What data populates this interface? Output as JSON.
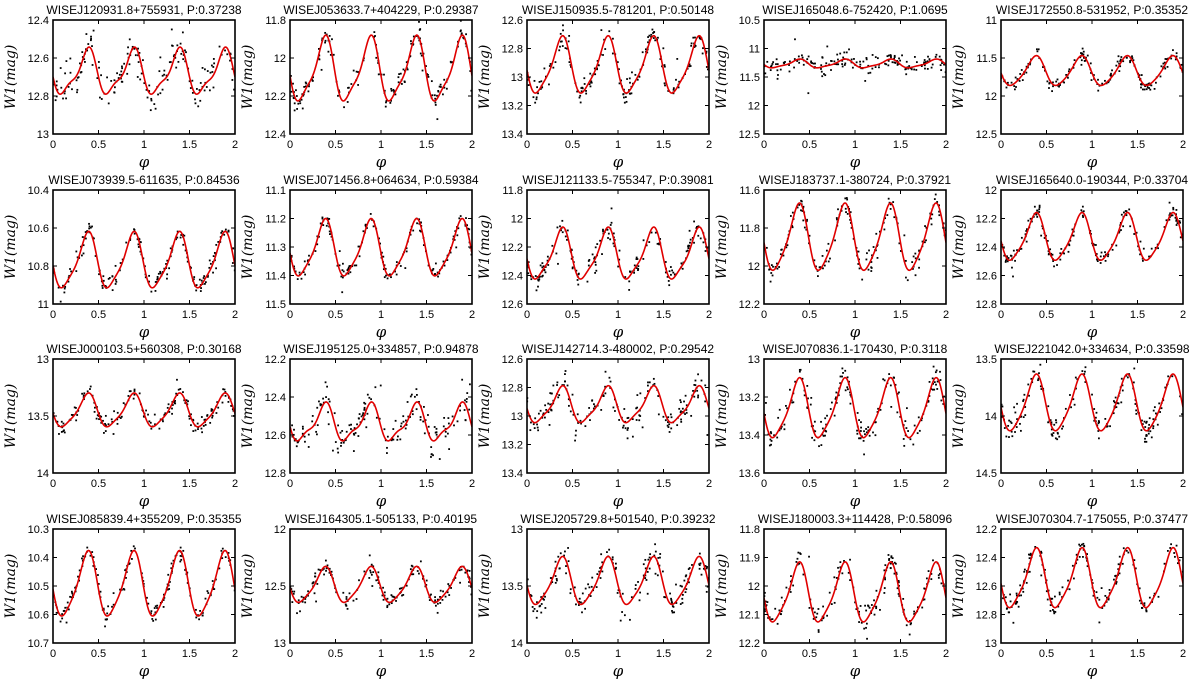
{
  "chart_data": [
    {
      "type": "scatter",
      "title": "WISEJ120931.8+755931, P:0.37238",
      "xlabel": "φ",
      "ylabel": "W1(mag)",
      "xlim": [
        0,
        2
      ],
      "ylim": [
        12.4,
        13
      ],
      "y_inverted": true,
      "xticks": [
        "0",
        "0.5",
        "1",
        "1.5",
        "2"
      ],
      "yticks": [
        "12.4",
        "12.6",
        "12.8",
        "13"
      ],
      "fit": {
        "mean": 12.68,
        "amp1": 0.11,
        "amp2": 0.035
      },
      "scatter_sigma": 0.05
    },
    {
      "type": "scatter",
      "title": "WISEJ053633.7+404229, P:0.29387",
      "xlabel": "φ",
      "ylabel": "W1(mag)",
      "xlim": [
        0,
        2
      ],
      "ylim": [
        11.8,
        12.4
      ],
      "y_inverted": true,
      "xticks": [
        "0",
        "0.5",
        "1",
        "1.5",
        "2"
      ],
      "yticks": [
        "11.8",
        "12",
        "12.2",
        "12.4"
      ],
      "fit": {
        "mean": 12.07,
        "amp1": 0.16,
        "amp2": 0.04
      },
      "scatter_sigma": 0.03
    },
    {
      "type": "scatter",
      "title": "WISEJ150935.5-781201, P:0.50148",
      "xlabel": "φ",
      "ylabel": "W1(mag)",
      "xlim": [
        0,
        2
      ],
      "ylim": [
        12.6,
        13.4
      ],
      "y_inverted": true,
      "xticks": [
        "0",
        "0.5",
        "1",
        "1.5",
        "2"
      ],
      "yticks": [
        "12.6",
        "12.8",
        "13",
        "13.2",
        "13.4"
      ],
      "fit": {
        "mean": 12.93,
        "amp1": 0.19,
        "amp2": 0.04
      },
      "scatter_sigma": 0.04
    },
    {
      "type": "scatter",
      "title": "WISEJ165048.6-752420, P:1.0695",
      "xlabel": "φ",
      "ylabel": "W1(mag)",
      "xlim": [
        0,
        2
      ],
      "ylim": [
        10.5,
        12.5
      ],
      "y_inverted": true,
      "xticks": [
        "0",
        "0.5",
        "1",
        "1.5",
        "2"
      ],
      "yticks": [
        "10.5",
        "11",
        "11.5",
        "12",
        "12.5"
      ],
      "fit": {
        "mean": 11.27,
        "amp1": 0.07,
        "amp2": 0.02
      },
      "scatter_sigma": 0.08
    },
    {
      "type": "scatter",
      "title": "WISEJ172550.8-531952, P:0.35352",
      "xlabel": "φ",
      "ylabel": "W1(mag)",
      "xlim": [
        0,
        2
      ],
      "ylim": [
        11,
        12.5
      ],
      "y_inverted": true,
      "xticks": [
        "0",
        "0.5",
        "1",
        "1.5",
        "2"
      ],
      "yticks": [
        "11",
        "11.5",
        "12",
        "12.5"
      ],
      "fit": {
        "mean": 11.68,
        "amp1": 0.19,
        "amp2": 0.03
      },
      "scatter_sigma": 0.04
    },
    {
      "type": "scatter",
      "title": "WISEJ073939.5-611635, P:0.84536",
      "xlabel": "φ",
      "ylabel": "W1(mag)",
      "xlim": [
        0,
        2
      ],
      "ylim": [
        10.4,
        11
      ],
      "y_inverted": true,
      "xticks": [
        "0",
        "0.5",
        "1",
        "1.5",
        "2"
      ],
      "yticks": [
        "10.4",
        "10.6",
        "10.8",
        "11"
      ],
      "fit": {
        "mean": 10.78,
        "amp1": 0.14,
        "amp2": 0.03
      },
      "scatter_sigma": 0.025
    },
    {
      "type": "scatter",
      "title": "WISEJ071456.8+064634, P:0.59384",
      "xlabel": "φ",
      "ylabel": "W1(mag)",
      "xlim": [
        0,
        2
      ],
      "ylim": [
        11.1,
        11.5
      ],
      "y_inverted": true,
      "xticks": [
        "0",
        "0.5",
        "1",
        "1.5",
        "2"
      ],
      "yticks": [
        "11.1",
        "11.2",
        "11.3",
        "11.4",
        "11.5"
      ],
      "fit": {
        "mean": 11.31,
        "amp1": 0.095,
        "amp2": 0.02
      },
      "scatter_sigma": 0.015
    },
    {
      "type": "scatter",
      "title": "WISEJ121133.5-755347, P:0.39081",
      "xlabel": "φ",
      "ylabel": "W1(mag)",
      "xlim": [
        0,
        2
      ],
      "ylim": [
        11.8,
        12.6
      ],
      "y_inverted": true,
      "xticks": [
        "0",
        "0.5",
        "1",
        "1.5",
        "2"
      ],
      "yticks": [
        "11.8",
        "12",
        "12.2",
        "12.4",
        "12.6"
      ],
      "fit": {
        "mean": 12.26,
        "amp1": 0.17,
        "amp2": 0.04
      },
      "scatter_sigma": 0.04
    },
    {
      "type": "scatter",
      "title": "WISEJ183737.1-380724, P:0.37921",
      "xlabel": "φ",
      "ylabel": "W1(mag)",
      "xlim": [
        0,
        2
      ],
      "ylim": [
        11.6,
        12.2
      ],
      "y_inverted": true,
      "xticks": [
        "0",
        "0.5",
        "1",
        "1.5",
        "2"
      ],
      "yticks": [
        "11.6",
        "11.8",
        "12",
        "12.2"
      ],
      "fit": {
        "mean": 11.86,
        "amp1": 0.17,
        "amp2": 0.03
      },
      "scatter_sigma": 0.03
    },
    {
      "type": "scatter",
      "title": "WISEJ165640.0-190344, P:0.33704",
      "xlabel": "φ",
      "ylabel": "W1(mag)",
      "xlim": [
        0,
        2
      ],
      "ylim": [
        12,
        12.8
      ],
      "y_inverted": true,
      "xticks": [
        "0",
        "0.5",
        "1",
        "1.5",
        "2"
      ],
      "yticks": [
        "12",
        "12.2",
        "12.4",
        "12.6",
        "12.8"
      ],
      "fit": {
        "mean": 12.34,
        "amp1": 0.16,
        "amp2": 0.03
      },
      "scatter_sigma": 0.03
    },
    {
      "type": "scatter",
      "title": "WISEJ000103.5+560308, P:0.30168",
      "xlabel": "φ",
      "ylabel": "W1(mag)",
      "xlim": [
        0,
        2
      ],
      "ylim": [
        13,
        14
      ],
      "y_inverted": true,
      "xticks": [
        "0",
        "0.5",
        "1",
        "1.5",
        "2"
      ],
      "yticks": [
        "13",
        "13.5",
        "14"
      ],
      "fit": {
        "mean": 13.46,
        "amp1": 0.14,
        "amp2": 0.03
      },
      "scatter_sigma": 0.04
    },
    {
      "type": "scatter",
      "title": "WISEJ195125.0+334857, P:0.94878",
      "xlabel": "φ",
      "ylabel": "W1(mag)",
      "xlim": [
        0,
        2
      ],
      "ylim": [
        12.2,
        12.8
      ],
      "y_inverted": true,
      "xticks": [
        "0",
        "0.5",
        "1",
        "1.5",
        "2"
      ],
      "yticks": [
        "12.2",
        "12.4",
        "12.6",
        "12.8"
      ],
      "fit": {
        "mean": 12.54,
        "amp1": 0.09,
        "amp2": 0.03
      },
      "scatter_sigma": 0.05
    },
    {
      "type": "scatter",
      "title": "WISEJ142714.3-480002, P:0.29542",
      "xlabel": "φ",
      "ylabel": "W1(mag)",
      "xlim": [
        0,
        2
      ],
      "ylim": [
        12.6,
        13.4
      ],
      "y_inverted": true,
      "xticks": [
        "0",
        "0.5",
        "1",
        "1.5",
        "2"
      ],
      "yticks": [
        "12.6",
        "12.8",
        "13",
        "13.2",
        "13.4"
      ],
      "fit": {
        "mean": 12.93,
        "amp1": 0.12,
        "amp2": 0.03
      },
      "scatter_sigma": 0.05
    },
    {
      "type": "scatter",
      "title": "WISEJ070836.1-170430, P:0.3118",
      "xlabel": "φ",
      "ylabel": "W1(mag)",
      "xlim": [
        0,
        2
      ],
      "ylim": [
        13,
        13.6
      ],
      "y_inverted": true,
      "xticks": [
        "0",
        "0.5",
        "1",
        "1.5",
        "2"
      ],
      "yticks": [
        "13",
        "13.2",
        "13.4",
        "13.6"
      ],
      "fit": {
        "mean": 13.27,
        "amp1": 0.15,
        "amp2": 0.03
      },
      "scatter_sigma": 0.04
    },
    {
      "type": "scatter",
      "title": "WISEJ221042.0+334634, P:0.33598",
      "xlabel": "φ",
      "ylabel": "W1(mag)",
      "xlim": [
        0,
        2
      ],
      "ylim": [
        13.5,
        14.5
      ],
      "y_inverted": true,
      "xticks": [
        "0",
        "0.5",
        "1",
        "1.5",
        "2"
      ],
      "yticks": [
        "13.5",
        "14",
        "14.5"
      ],
      "fit": {
        "mean": 13.9,
        "amp1": 0.24,
        "amp2": 0.04
      },
      "scatter_sigma": 0.06
    },
    {
      "type": "scatter",
      "title": "WISEJ085839.4+355209, P:0.35355",
      "xlabel": "φ",
      "ylabel": "W1(mag)",
      "xlim": [
        0,
        2
      ],
      "ylim": [
        10.3,
        10.7
      ],
      "y_inverted": true,
      "xticks": [
        "0",
        "0.5",
        "1",
        "1.5",
        "2"
      ],
      "yticks": [
        "10.3",
        "10.4",
        "10.5",
        "10.6",
        "10.7"
      ],
      "fit": {
        "mean": 10.5,
        "amp1": 0.11,
        "amp2": 0.02
      },
      "scatter_sigma": 0.015
    },
    {
      "type": "scatter",
      "title": "WISEJ164305.1-505133, P:0.40195",
      "xlabel": "φ",
      "ylabel": "W1(mag)",
      "xlim": [
        0,
        2
      ],
      "ylim": [
        12,
        13
      ],
      "y_inverted": true,
      "xticks": [
        "0",
        "0.5",
        "1",
        "1.5",
        "2"
      ],
      "yticks": [
        "12",
        "12.5",
        "13"
      ],
      "fit": {
        "mean": 12.5,
        "amp1": 0.15,
        "amp2": 0.03
      },
      "scatter_sigma": 0.04
    },
    {
      "type": "scatter",
      "title": "WISEJ205729.8+501540, P:0.39232",
      "xlabel": "φ",
      "ylabel": "W1(mag)",
      "xlim": [
        0,
        2
      ],
      "ylim": [
        13,
        14
      ],
      "y_inverted": true,
      "xticks": [
        "0",
        "0.5",
        "1",
        "1.5",
        "2"
      ],
      "yticks": [
        "13",
        "13.5",
        "14"
      ],
      "fit": {
        "mean": 13.47,
        "amp1": 0.2,
        "amp2": 0.04
      },
      "scatter_sigma": 0.07
    },
    {
      "type": "scatter",
      "title": "WISEJ180003.3+114428, P:0.58096",
      "xlabel": "φ",
      "ylabel": "W1(mag)",
      "xlim": [
        0,
        2
      ],
      "ylim": [
        11.8,
        12.2
      ],
      "y_inverted": true,
      "xticks": [
        "0",
        "0.5",
        "1",
        "1.5",
        "2"
      ],
      "yticks": [
        "11.8",
        "11.9",
        "12",
        "12.1",
        "12.2"
      ],
      "fit": {
        "mean": 12.03,
        "amp1": 0.1,
        "amp2": 0.02
      },
      "scatter_sigma": 0.025
    },
    {
      "type": "scatter",
      "title": "WISEJ070304.7-175055, P:0.37477",
      "xlabel": "φ",
      "ylabel": "W1(mag)",
      "xlim": [
        0,
        2
      ],
      "ylim": [
        12.2,
        13
      ],
      "y_inverted": true,
      "xticks": [
        "0",
        "0.5",
        "1",
        "1.5",
        "2"
      ],
      "yticks": [
        "12.2",
        "12.4",
        "12.6",
        "12.8",
        "13"
      ],
      "fit": {
        "mean": 12.56,
        "amp1": 0.2,
        "amp2": 0.04
      },
      "scatter_sigma": 0.04
    }
  ],
  "colors": {
    "fit_line": "#e00000",
    "points": "#000000",
    "axes": "#000000"
  }
}
